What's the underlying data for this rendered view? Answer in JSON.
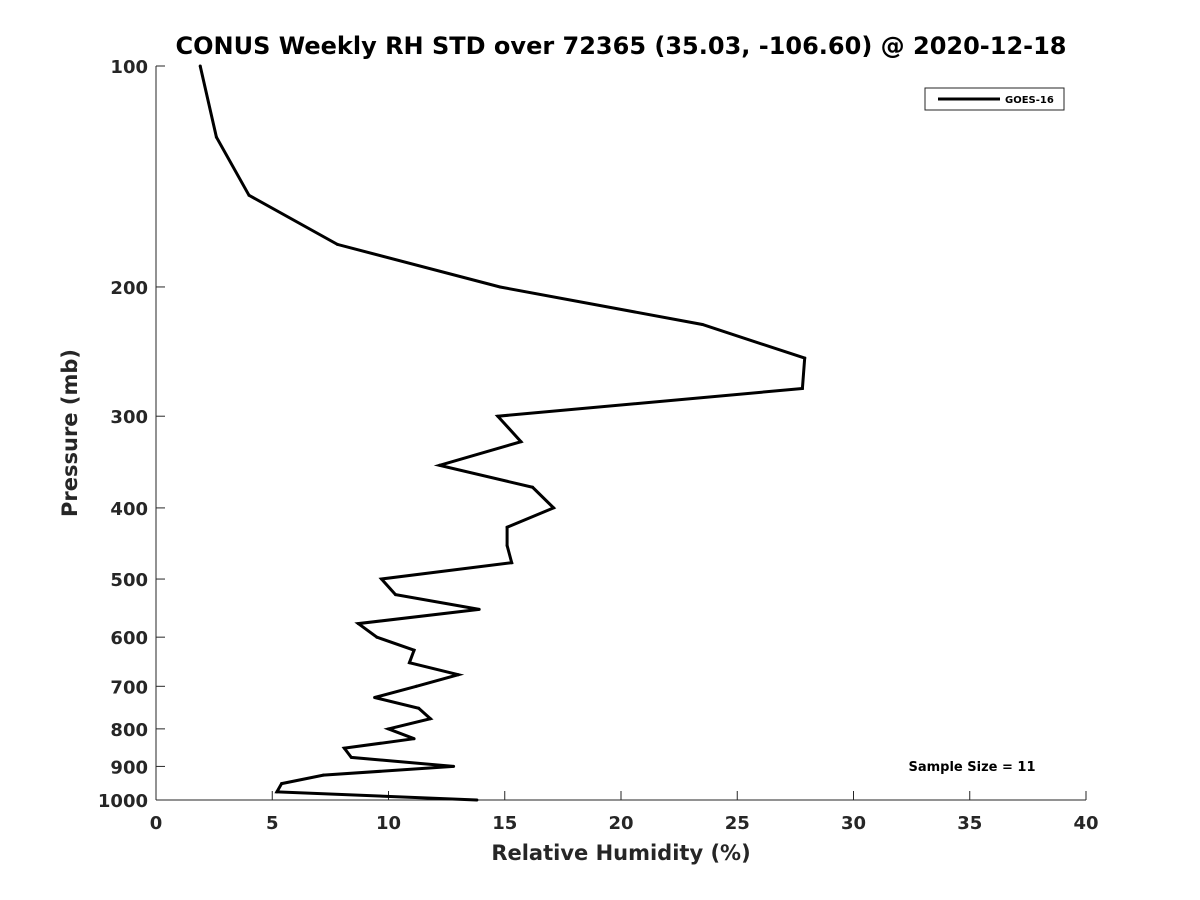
{
  "chart_data": {
    "type": "line",
    "title": "CONUS Weekly RH STD over 72365 (35.03, -106.60) @ 2020-12-18",
    "xlabel": "Relative Humidity (%)",
    "ylabel": "Pressure (mb)",
    "xlim": [
      0,
      40
    ],
    "ylim": [
      100,
      1000
    ],
    "yscale": "log",
    "y_reversed": true,
    "xticks": [
      0,
      5,
      10,
      15,
      20,
      25,
      30,
      35,
      40
    ],
    "yticks": [
      100,
      200,
      300,
      400,
      500,
      600,
      700,
      800,
      900,
      1000
    ],
    "grid": false,
    "legend_position": "top-right",
    "annotation": "Sample Size = 11",
    "series": [
      {
        "name": "GOES-16",
        "color": "#000000",
        "points": [
          [
            1.9,
            100
          ],
          [
            2.6,
            125
          ],
          [
            4.0,
            150
          ],
          [
            7.8,
            175
          ],
          [
            14.8,
            200
          ],
          [
            23.5,
            225
          ],
          [
            27.9,
            250
          ],
          [
            27.8,
            275
          ],
          [
            14.7,
            300
          ],
          [
            15.7,
            325
          ],
          [
            12.2,
            350
          ],
          [
            16.2,
            375
          ],
          [
            17.1,
            400
          ],
          [
            15.1,
            425
          ],
          [
            15.1,
            450
          ],
          [
            15.3,
            475
          ],
          [
            9.7,
            500
          ],
          [
            10.3,
            525
          ],
          [
            13.9,
            550
          ],
          [
            8.7,
            575
          ],
          [
            9.5,
            600
          ],
          [
            11.1,
            625
          ],
          [
            10.9,
            650
          ],
          [
            13.0,
            675
          ],
          [
            11.2,
            700
          ],
          [
            9.4,
            725
          ],
          [
            11.3,
            750
          ],
          [
            11.8,
            775
          ],
          [
            10.0,
            800
          ],
          [
            11.1,
            825
          ],
          [
            8.1,
            850
          ],
          [
            8.4,
            875
          ],
          [
            12.8,
            900
          ],
          [
            7.2,
            925
          ],
          [
            5.4,
            950
          ],
          [
            5.2,
            975
          ],
          [
            13.8,
            1000
          ]
        ]
      }
    ]
  }
}
